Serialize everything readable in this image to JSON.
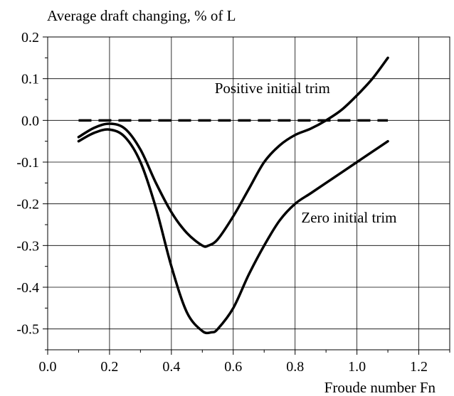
{
  "chart_data": {
    "type": "line",
    "title": "",
    "ylabel": "Average draft changing, % of L",
    "xlabel": "Froude number Fn",
    "xlim": [
      0.0,
      1.3
    ],
    "ylim": [
      -0.55,
      0.2
    ],
    "xticks": [
      0.0,
      0.2,
      0.4,
      0.6,
      0.8,
      1.0,
      1.2
    ],
    "yticks": [
      0.2,
      0.1,
      0.0,
      -0.1,
      -0.2,
      -0.3,
      -0.4,
      -0.5
    ],
    "xtick_labels": [
      "0.0",
      "0.2",
      "0.4",
      "0.6",
      "0.8",
      "1.0",
      "1.2"
    ],
    "ytick_labels": [
      "0.2",
      "0.1",
      "0.0",
      "-0.1",
      "-0.2",
      "-0.3",
      "-0.4",
      "-0.5"
    ],
    "grid": true,
    "series": [
      {
        "name": "Positive initial trim",
        "style": "solid",
        "x": [
          0.1,
          0.15,
          0.2,
          0.25,
          0.3,
          0.35,
          0.4,
          0.45,
          0.5,
          0.52,
          0.55,
          0.6,
          0.65,
          0.7,
          0.75,
          0.8,
          0.85,
          0.9,
          0.95,
          1.0,
          1.05,
          1.1
        ],
        "y": [
          -0.04,
          -0.018,
          -0.008,
          -0.02,
          -0.07,
          -0.15,
          -0.22,
          -0.27,
          -0.3,
          -0.3,
          -0.285,
          -0.23,
          -0.165,
          -0.1,
          -0.06,
          -0.035,
          -0.02,
          0.0,
          0.025,
          0.06,
          0.1,
          0.15
        ]
      },
      {
        "name": "Zero initial trim",
        "style": "solid",
        "x": [
          0.1,
          0.15,
          0.2,
          0.25,
          0.3,
          0.35,
          0.4,
          0.45,
          0.5,
          0.53,
          0.55,
          0.6,
          0.65,
          0.7,
          0.75,
          0.8,
          0.85,
          0.9,
          0.95,
          1.0,
          1.05,
          1.1
        ],
        "y": [
          -0.05,
          -0.03,
          -0.022,
          -0.04,
          -0.1,
          -0.21,
          -0.35,
          -0.46,
          -0.505,
          -0.508,
          -0.5,
          -0.45,
          -0.37,
          -0.3,
          -0.24,
          -0.2,
          -0.175,
          -0.15,
          -0.125,
          -0.1,
          -0.075,
          -0.05
        ]
      },
      {
        "name": "",
        "style": "dashed",
        "x": [
          0.1,
          1.1
        ],
        "y": [
          0.0,
          0.0
        ]
      }
    ],
    "annotations": [
      {
        "text": "Positive initial trim",
        "x": 0.54,
        "y": 0.065
      },
      {
        "text": "Zero initial trim",
        "x": 0.82,
        "y": -0.245
      }
    ],
    "color": "#000000"
  }
}
